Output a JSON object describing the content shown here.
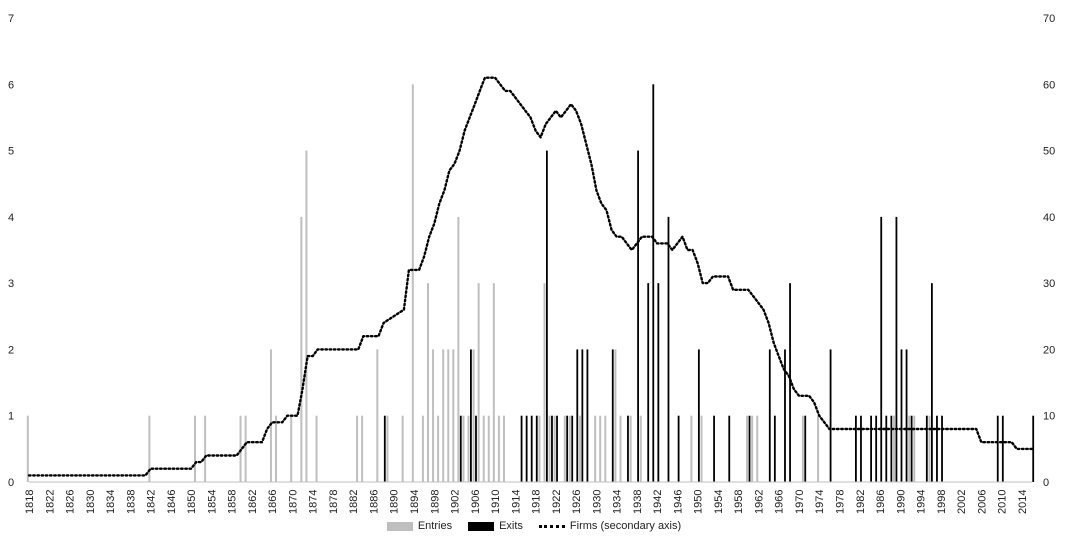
{
  "chart_data": {
    "type": "bar",
    "x_range": [
      1818,
      2016
    ],
    "x_ticks": [
      "1818",
      "1822",
      "1826",
      "1830",
      "1834",
      "1838",
      "1842",
      "1846",
      "1850",
      "1854",
      "1858",
      "1862",
      "1866",
      "1870",
      "1874",
      "1878",
      "1882",
      "1886",
      "1890",
      "1894",
      "1898",
      "1902",
      "1906",
      "1910",
      "1914",
      "1918",
      "1922",
      "1926",
      "1930",
      "1934",
      "1938",
      "1942",
      "1946",
      "1950",
      "1954",
      "1958",
      "1962",
      "1966",
      "1970",
      "1974",
      "1978",
      "1982",
      "1986",
      "1990",
      "1994",
      "1998",
      "2002",
      "2006",
      "2010",
      "2014"
    ],
    "y_left": {
      "min": 0,
      "max": 7,
      "ticks": [
        "0",
        "1",
        "2",
        "3",
        "4",
        "5",
        "6",
        "7"
      ]
    },
    "y_right": {
      "min": 0,
      "max": 70,
      "ticks": [
        "0",
        "10",
        "20",
        "30",
        "40",
        "50",
        "60",
        "70"
      ]
    },
    "grid": false,
    "legend_position": "bottom",
    "colors": {
      "entries": "#bfbfbf",
      "exits": "#000000",
      "firms": "#000000"
    },
    "series": [
      {
        "name": "Entries",
        "kind": "bar",
        "axis": "left",
        "points": [
          [
            1818,
            1
          ],
          [
            1842,
            1
          ],
          [
            1851,
            1
          ],
          [
            1853,
            1
          ],
          [
            1860,
            1
          ],
          [
            1861,
            1
          ],
          [
            1866,
            2
          ],
          [
            1867,
            1
          ],
          [
            1870,
            1
          ],
          [
            1872,
            4
          ],
          [
            1873,
            5
          ],
          [
            1875,
            1
          ],
          [
            1883,
            1
          ],
          [
            1884,
            1
          ],
          [
            1887,
            2
          ],
          [
            1889,
            1
          ],
          [
            1892,
            1
          ],
          [
            1894,
            6
          ],
          [
            1896,
            1
          ],
          [
            1897,
            3
          ],
          [
            1898,
            2
          ],
          [
            1899,
            1
          ],
          [
            1900,
            2
          ],
          [
            1901,
            2
          ],
          [
            1902,
            2
          ],
          [
            1903,
            4
          ],
          [
            1904,
            1
          ],
          [
            1905,
            1
          ],
          [
            1906,
            2
          ],
          [
            1907,
            3
          ],
          [
            1908,
            1
          ],
          [
            1909,
            1
          ],
          [
            1910,
            3
          ],
          [
            1911,
            1
          ],
          [
            1912,
            1
          ],
          [
            1919,
            1
          ],
          [
            1920,
            3
          ],
          [
            1921,
            1
          ],
          [
            1922,
            1
          ],
          [
            1924,
            1
          ],
          [
            1925,
            1
          ],
          [
            1927,
            1
          ],
          [
            1930,
            1
          ],
          [
            1931,
            1
          ],
          [
            1932,
            1
          ],
          [
            1934,
            2
          ],
          [
            1935,
            1
          ],
          [
            1937,
            1
          ],
          [
            1939,
            1
          ],
          [
            1949,
            1
          ],
          [
            1951,
            1
          ],
          [
            1960,
            1
          ],
          [
            1961,
            1
          ],
          [
            1962,
            1
          ],
          [
            1971,
            1
          ],
          [
            1974,
            1
          ],
          [
            1989,
            1
          ],
          [
            1992,
            1
          ],
          [
            1993,
            1
          ],
          [
            1996,
            1
          ]
        ]
      },
      {
        "name": "Exits",
        "kind": "bar",
        "axis": "left",
        "points": [
          [
            1888,
            1
          ],
          [
            1903,
            1
          ],
          [
            1905,
            2
          ],
          [
            1906,
            1
          ],
          [
            1915,
            1
          ],
          [
            1916,
            1
          ],
          [
            1917,
            1
          ],
          [
            1918,
            1
          ],
          [
            1920,
            5
          ],
          [
            1921,
            1
          ],
          [
            1922,
            1
          ],
          [
            1924,
            1
          ],
          [
            1925,
            1
          ],
          [
            1926,
            2
          ],
          [
            1927,
            2
          ],
          [
            1928,
            2
          ],
          [
            1933,
            2
          ],
          [
            1936,
            1
          ],
          [
            1938,
            5
          ],
          [
            1940,
            3
          ],
          [
            1941,
            6
          ],
          [
            1942,
            3
          ],
          [
            1944,
            4
          ],
          [
            1946,
            1
          ],
          [
            1950,
            2
          ],
          [
            1953,
            1
          ],
          [
            1956,
            1
          ],
          [
            1960,
            1
          ],
          [
            1964,
            2
          ],
          [
            1965,
            1
          ],
          [
            1967,
            2
          ],
          [
            1968,
            3
          ],
          [
            1971,
            1
          ],
          [
            1976,
            2
          ],
          [
            1981,
            1
          ],
          [
            1982,
            1
          ],
          [
            1984,
            1
          ],
          [
            1985,
            1
          ],
          [
            1986,
            4
          ],
          [
            1987,
            1
          ],
          [
            1988,
            1
          ],
          [
            1989,
            4
          ],
          [
            1990,
            2
          ],
          [
            1991,
            2
          ],
          [
            1992,
            1
          ],
          [
            1995,
            1
          ],
          [
            1996,
            3
          ],
          [
            1997,
            1
          ],
          [
            1998,
            1
          ],
          [
            2009,
            1
          ],
          [
            2010,
            1
          ],
          [
            2016,
            1
          ]
        ]
      },
      {
        "name": "Firms (secondary axis)",
        "kind": "line",
        "style": "dotted",
        "axis": "right",
        "points": [
          [
            1818,
            1
          ],
          [
            1841,
            1
          ],
          [
            1842,
            2
          ],
          [
            1850,
            2
          ],
          [
            1851,
            3
          ],
          [
            1852,
            3
          ],
          [
            1853,
            4
          ],
          [
            1859,
            4
          ],
          [
            1860,
            5
          ],
          [
            1861,
            6
          ],
          [
            1864,
            6
          ],
          [
            1865,
            8
          ],
          [
            1866,
            9
          ],
          [
            1868,
            9
          ],
          [
            1869,
            10
          ],
          [
            1871,
            10
          ],
          [
            1872,
            14
          ],
          [
            1873,
            19
          ],
          [
            1874,
            19
          ],
          [
            1875,
            20
          ],
          [
            1883,
            20
          ],
          [
            1884,
            22
          ],
          [
            1887,
            22
          ],
          [
            1888,
            24
          ],
          [
            1890,
            25
          ],
          [
            1892,
            26
          ],
          [
            1893,
            32
          ],
          [
            1895,
            32
          ],
          [
            1896,
            34
          ],
          [
            1897,
            37
          ],
          [
            1898,
            39
          ],
          [
            1899,
            42
          ],
          [
            1900,
            44
          ],
          [
            1901,
            47
          ],
          [
            1902,
            48
          ],
          [
            1903,
            50
          ],
          [
            1904,
            53
          ],
          [
            1905,
            55
          ],
          [
            1906,
            57
          ],
          [
            1907,
            59
          ],
          [
            1908,
            61
          ],
          [
            1909,
            61
          ],
          [
            1910,
            61
          ],
          [
            1911,
            60
          ],
          [
            1912,
            59
          ],
          [
            1913,
            59
          ],
          [
            1914,
            58
          ],
          [
            1915,
            57
          ],
          [
            1916,
            56
          ],
          [
            1917,
            55
          ],
          [
            1918,
            53
          ],
          [
            1919,
            52
          ],
          [
            1920,
            54
          ],
          [
            1921,
            55
          ],
          [
            1922,
            56
          ],
          [
            1923,
            55
          ],
          [
            1924,
            56
          ],
          [
            1925,
            57
          ],
          [
            1926,
            56
          ],
          [
            1927,
            54
          ],
          [
            1928,
            51
          ],
          [
            1929,
            48
          ],
          [
            1930,
            44
          ],
          [
            1931,
            42
          ],
          [
            1932,
            41
          ],
          [
            1933,
            38
          ],
          [
            1934,
            37
          ],
          [
            1935,
            37
          ],
          [
            1936,
            36
          ],
          [
            1937,
            35
          ],
          [
            1938,
            36
          ],
          [
            1939,
            37
          ],
          [
            1940,
            37
          ],
          [
            1941,
            37
          ],
          [
            1942,
            36
          ],
          [
            1943,
            36
          ],
          [
            1944,
            36
          ],
          [
            1945,
            35
          ],
          [
            1946,
            36
          ],
          [
            1947,
            37
          ],
          [
            1948,
            35
          ],
          [
            1949,
            35
          ],
          [
            1950,
            33
          ],
          [
            1951,
            30
          ],
          [
            1952,
            30
          ],
          [
            1953,
            31
          ],
          [
            1954,
            31
          ],
          [
            1955,
            31
          ],
          [
            1956,
            31
          ],
          [
            1957,
            29
          ],
          [
            1958,
            29
          ],
          [
            1959,
            29
          ],
          [
            1960,
            29
          ],
          [
            1961,
            28
          ],
          [
            1962,
            27
          ],
          [
            1963,
            26
          ],
          [
            1964,
            24
          ],
          [
            1965,
            21
          ],
          [
            1966,
            19
          ],
          [
            1967,
            17
          ],
          [
            1968,
            16
          ],
          [
            1969,
            14
          ],
          [
            1970,
            13
          ],
          [
            1971,
            13
          ],
          [
            1972,
            13
          ],
          [
            1973,
            12
          ],
          [
            1974,
            10
          ],
          [
            1975,
            9
          ],
          [
            1976,
            8
          ],
          [
            1977,
            8
          ],
          [
            2005,
            8
          ],
          [
            2006,
            6
          ],
          [
            2007,
            6
          ],
          [
            2012,
            6
          ],
          [
            2013,
            5
          ],
          [
            2016,
            5
          ]
        ]
      }
    ]
  },
  "legend": {
    "entries": "Entries",
    "exits": "Exits",
    "firms": "Firms (secondary axis)"
  }
}
